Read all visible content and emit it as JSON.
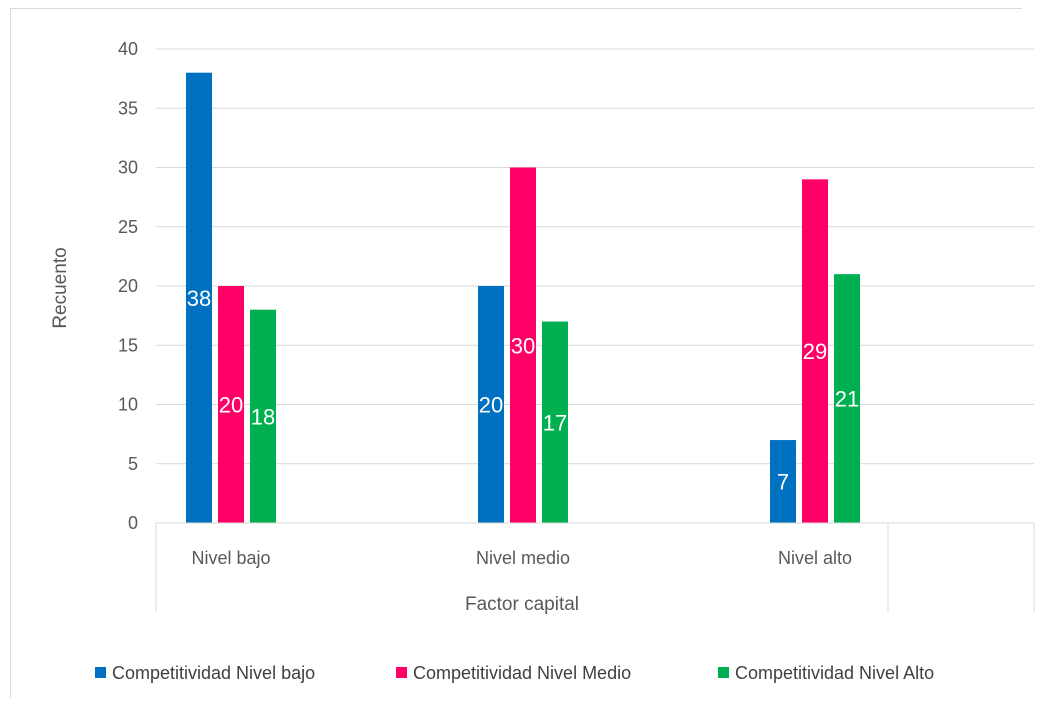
{
  "chart_data": {
    "type": "bar",
    "categories": [
      "Nivel bajo",
      "Nivel medio",
      "Nivel alto"
    ],
    "series": [
      {
        "name": "Competitividad Nivel bajo",
        "values": [
          38,
          20,
          7
        ],
        "color": "#0070c0"
      },
      {
        "name": "Competitividad Nivel Medio",
        "values": [
          20,
          30,
          29
        ],
        "color": "#ff0066"
      },
      {
        "name": "Competitividad Nivel Alto",
        "values": [
          18,
          17,
          21
        ],
        "color": "#00b050"
      }
    ],
    "xlabel": "Factor capital",
    "ylabel": "Recuento",
    "ylim": [
      0,
      40
    ],
    "yticks": [
      0,
      5,
      10,
      15,
      20,
      25,
      30,
      35,
      40
    ],
    "grid": true,
    "legend_position": "bottom",
    "data_labels": true
  }
}
